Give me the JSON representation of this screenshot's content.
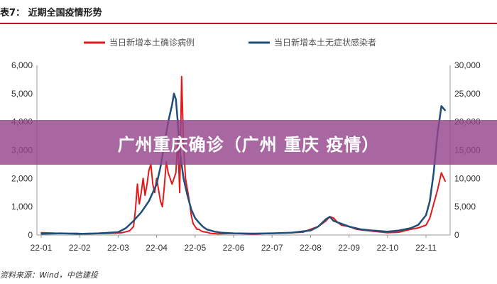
{
  "header": {
    "title": "表7：  近期全国疫情形势"
  },
  "banner": {
    "text": "广州重庆确诊（广州 重庆 疫情）"
  },
  "source": {
    "text": "资料来源：Wind，中信建投"
  },
  "chart_data": {
    "type": "line",
    "title": "",
    "xlabel": "",
    "ylabel_left": "",
    "ylabel_right": "",
    "ylim_left": [
      0,
      6000
    ],
    "ylim_right": [
      0,
      30000
    ],
    "yticks_left": [
      "0",
      "1,000",
      "2,000",
      "3,000",
      "4,000",
      "5,000",
      "6,000"
    ],
    "yticks_right": [
      "0",
      "5,000",
      "10,000",
      "15,000",
      "20,000",
      "25,000",
      "30,000"
    ],
    "xticks": [
      "22-01",
      "22-02",
      "22-03",
      "22-04",
      "22-05",
      "22-06",
      "22-07",
      "22-08",
      "22-09",
      "22-10",
      "22-11"
    ],
    "legend_position": "top",
    "grid": false,
    "series": [
      {
        "name": "当日新增本土确诊病例",
        "axis": "left",
        "color": "#e31a1c",
        "x": [
          0,
          0.3,
          0.6,
          0.9,
          1.2,
          1.5,
          1.8,
          2.1,
          2.3,
          2.4,
          2.45,
          2.5,
          2.55,
          2.6,
          2.65,
          2.7,
          2.75,
          2.8,
          2.85,
          2.9,
          2.95,
          3.0,
          3.05,
          3.1,
          3.15,
          3.2,
          3.25,
          3.3,
          3.4,
          3.5,
          3.55,
          3.6,
          3.65,
          3.7,
          3.75,
          3.8,
          3.85,
          3.9,
          3.95,
          4.0,
          4.05,
          4.1,
          4.15,
          4.2,
          4.3,
          4.4,
          4.6,
          4.8,
          5.0,
          5.5,
          6.0,
          6.5,
          6.8,
          7.0,
          7.2,
          7.4,
          7.5,
          7.6,
          7.7,
          7.8,
          8.0,
          8.2,
          8.5,
          9.0,
          9.3,
          9.6,
          9.8,
          10.0,
          10.1,
          10.2,
          10.3,
          10.4,
          10.5
        ],
        "y": [
          80,
          70,
          50,
          60,
          40,
          50,
          60,
          80,
          150,
          300,
          900,
          1800,
          1100,
          1500,
          2000,
          1400,
          1800,
          2300,
          2500,
          1800,
          1500,
          2000,
          1600,
          1200,
          1000,
          1700,
          2600,
          2200,
          1800,
          2200,
          3400,
          1500,
          5600,
          3200,
          2000,
          1600,
          1200,
          700,
          400,
          300,
          200,
          200,
          150,
          120,
          100,
          60,
          40,
          50,
          60,
          30,
          60,
          80,
          100,
          200,
          300,
          500,
          650,
          600,
          450,
          350,
          300,
          200,
          150,
          80,
          100,
          200,
          250,
          350,
          600,
          1100,
          1600,
          2200,
          1900
        ]
      },
      {
        "name": "当日新增本土无症状感染者",
        "axis": "right",
        "color": "#1f4e79",
        "x": [
          0,
          0.5,
          1.0,
          1.5,
          2.0,
          2.2,
          2.4,
          2.6,
          2.8,
          3.0,
          3.1,
          3.2,
          3.3,
          3.4,
          3.45,
          3.5,
          3.55,
          3.6,
          3.7,
          3.8,
          3.9,
          4.0,
          4.1,
          4.2,
          4.3,
          4.4,
          4.5,
          4.7,
          5.0,
          5.5,
          6.0,
          6.5,
          7.0,
          7.2,
          7.4,
          7.5,
          7.6,
          7.8,
          8.0,
          8.3,
          8.6,
          9.0,
          9.3,
          9.6,
          9.8,
          10.0,
          10.1,
          10.2,
          10.3,
          10.4,
          10.5
        ],
        "y": [
          200,
          300,
          200,
          300,
          500,
          1200,
          2500,
          4000,
          6000,
          9000,
          12000,
          16000,
          20000,
          23000,
          25000,
          24000,
          20000,
          15000,
          10000,
          7000,
          4500,
          3000,
          2200,
          1500,
          1000,
          800,
          600,
          400,
          300,
          250,
          300,
          400,
          800,
          1500,
          2800,
          3200,
          2500,
          2000,
          1500,
          1000,
          800,
          600,
          800,
          1200,
          1800,
          3500,
          6000,
          11000,
          18000,
          22800,
          22000
        ]
      }
    ]
  }
}
